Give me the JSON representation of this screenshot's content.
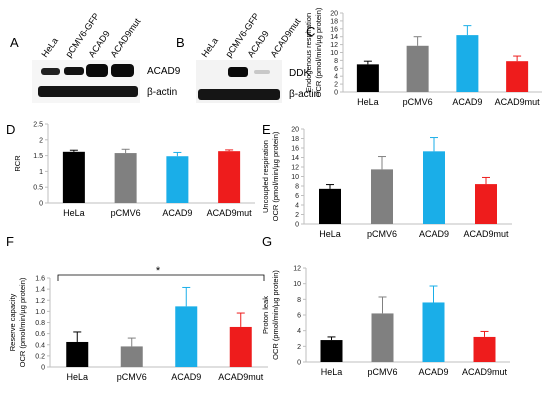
{
  "panels": {
    "A": {
      "letter": "A",
      "lanes": [
        "HeLa",
        "pCMV6-GFP",
        "ACAD9",
        "ACAD9mut"
      ],
      "band_labels": [
        "ACAD9",
        "β-actin"
      ]
    },
    "B": {
      "letter": "B",
      "lanes": [
        "HeLa",
        "pCMV6-GFP",
        "ACAD9",
        "ACAD9mut"
      ],
      "band_labels": [
        "DDK",
        "β-actin"
      ]
    },
    "C": {
      "letter": "C"
    },
    "D": {
      "letter": "D"
    },
    "E": {
      "letter": "E"
    },
    "F": {
      "letter": "F",
      "significance": "*"
    },
    "G": {
      "letter": "G"
    }
  },
  "colors": {
    "HeLa": "#000000",
    "pCMV6": "#808080",
    "ACAD9": "#1aaee8",
    "ACAD9mut": "#ee1c1c"
  },
  "chart_data": [
    {
      "panel": "C",
      "type": "bar",
      "categories": [
        "HeLa",
        "pCMV6",
        "ACAD9",
        "ACAD9mut"
      ],
      "values": [
        7.0,
        11.7,
        14.4,
        7.8
      ],
      "errors": [
        0.8,
        2.3,
        2.4,
        1.3
      ],
      "ylabel": [
        "Endogenous  respiration",
        "OCR (pmol/min/µg protein)"
      ],
      "ylim": [
        0,
        20
      ],
      "yticks": [
        "0",
        "2",
        "4",
        "6",
        "8",
        "10",
        "12",
        "14",
        "16",
        "18",
        "20"
      ]
    },
    {
      "panel": "D",
      "type": "bar",
      "categories": [
        "HeLa",
        "pCMV6",
        "ACAD9",
        "ACAD9mut"
      ],
      "values": [
        1.62,
        1.58,
        1.48,
        1.64
      ],
      "errors": [
        0.05,
        0.12,
        0.12,
        0.04
      ],
      "ylabel": [
        "RCR"
      ],
      "ylim": [
        0,
        2.5
      ],
      "yticks": [
        "0",
        "0.5",
        "1",
        "1.5",
        "2",
        "2.5"
      ]
    },
    {
      "panel": "E",
      "type": "bar",
      "categories": [
        "HeLa",
        "pCMV6",
        "ACAD9",
        "ACAD9mut"
      ],
      "values": [
        7.4,
        11.5,
        15.3,
        8.4
      ],
      "errors": [
        0.9,
        2.7,
        2.9,
        1.4
      ],
      "ylabel": [
        "Uncoupled respiration",
        "OCR (pmol/min/µg protein)"
      ],
      "ylim": [
        0,
        20
      ],
      "yticks": [
        "0",
        "2",
        "4",
        "6",
        "8",
        "10",
        "12",
        "14",
        "16",
        "18",
        "20"
      ]
    },
    {
      "panel": "F",
      "type": "bar",
      "categories": [
        "HeLa",
        "pCMV6",
        "ACAD9",
        "ACAD9mut"
      ],
      "values": [
        0.45,
        0.37,
        1.09,
        0.72
      ],
      "errors": [
        0.18,
        0.15,
        0.34,
        0.25
      ],
      "ylabel": [
        "Reserve capacity",
        "OCR (pmol/min/µg protein)"
      ],
      "ylim": [
        0,
        1.6
      ],
      "yticks": [
        "0",
        "0.2",
        "0.4",
        "0.6",
        "0.8",
        "1.0",
        "1.2",
        "1.4",
        "1.6"
      ]
    },
    {
      "panel": "G",
      "type": "bar",
      "categories": [
        "HeLa",
        "pCMV6",
        "ACAD9",
        "ACAD9mut"
      ],
      "values": [
        2.8,
        6.2,
        7.6,
        3.2
      ],
      "errors": [
        0.4,
        2.1,
        2.1,
        0.7
      ],
      "ylabel": [
        "Proton leak",
        "OCR (pmol/min/µg protein)"
      ],
      "ylim": [
        0,
        12
      ],
      "yticks": [
        "0",
        "2",
        "4",
        "6",
        "8",
        "10",
        "12"
      ]
    }
  ]
}
